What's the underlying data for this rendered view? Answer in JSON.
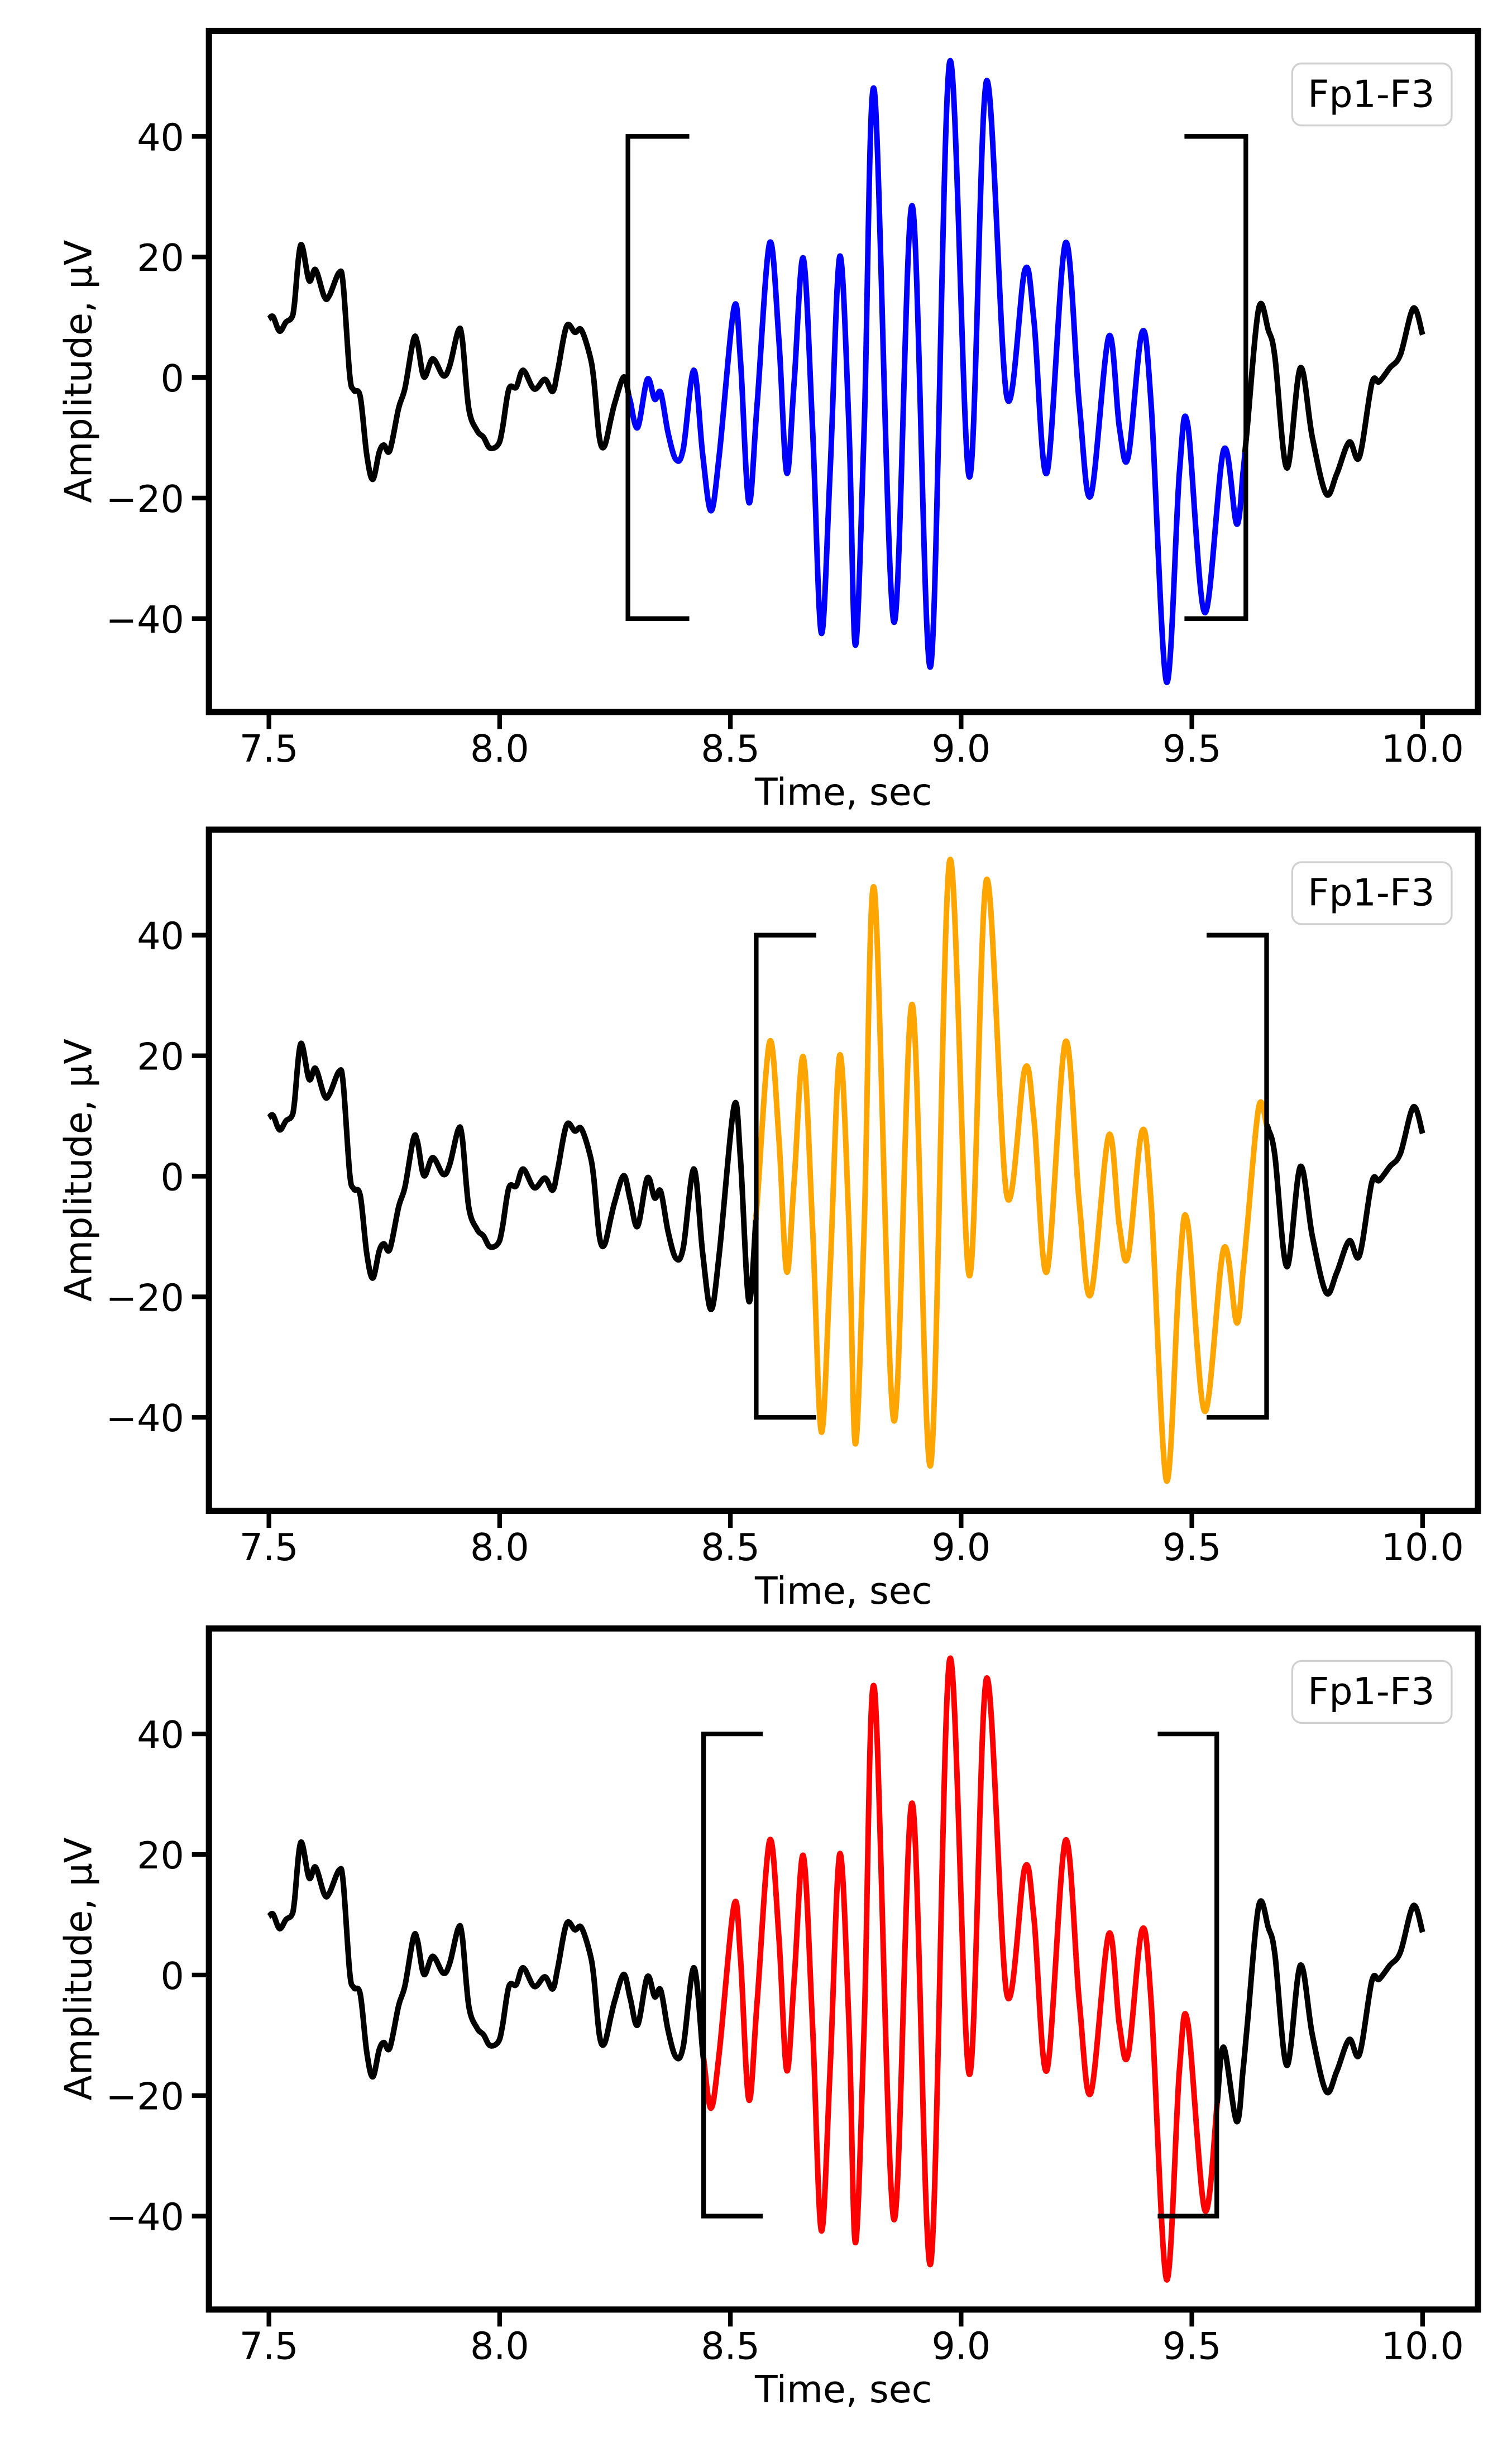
{
  "chart_data": {
    "type": "line",
    "xlabel": "Time, sec",
    "ylabel": "Amplitude, µV",
    "xlim": [
      7.37,
      10.12
    ],
    "ylim": [
      -55.5,
      57.5
    ],
    "xticks": [
      "7.5",
      "8.0",
      "8.5",
      "9.0",
      "9.5",
      "10.0"
    ],
    "xtick_values": [
      7.5,
      8.0,
      8.5,
      9.0,
      9.5,
      10.0
    ],
    "yticks": [
      "−40",
      "−20",
      "0",
      "20",
      "40"
    ],
    "ytick_values": [
      -40,
      -20,
      0,
      20,
      40
    ],
    "grid": false,
    "base_color": "#000000",
    "x": [
      7.5,
      7.509,
      7.523,
      7.537,
      7.549,
      7.555,
      7.569,
      7.587,
      7.601,
      7.62,
      7.631,
      7.652,
      7.661,
      7.675,
      7.684,
      7.698,
      7.712,
      7.725,
      7.739,
      7.749,
      7.762,
      7.781,
      7.795,
      7.813,
      7.822,
      7.836,
      7.855,
      7.878,
      7.892,
      7.91,
      7.919,
      7.933,
      7.951,
      7.965,
      7.979,
      7.997,
      8.006,
      8.02,
      8.036,
      8.051,
      8.075,
      8.098,
      8.115,
      8.126,
      8.145,
      8.163,
      8.177,
      8.195,
      8.204,
      8.216,
      8.227,
      8.241,
      8.25,
      8.269,
      8.283,
      8.299,
      8.32,
      8.336,
      8.349,
      8.365,
      8.382,
      8.398,
      8.421,
      8.44,
      8.458,
      8.476,
      8.508,
      8.522,
      8.54,
      8.558,
      8.585,
      8.605,
      8.622,
      8.638,
      8.658,
      8.678,
      8.697,
      8.716,
      8.737,
      8.757,
      8.771,
      8.79,
      8.812,
      8.854,
      8.894,
      8.934,
      8.975,
      9.018,
      9.055,
      9.099,
      9.138,
      9.158,
      9.186,
      9.226,
      9.256,
      9.281,
      9.32,
      9.343,
      9.362,
      9.392,
      9.412,
      9.445,
      9.473,
      9.491,
      9.528,
      9.569,
      9.597,
      9.611,
      9.62,
      9.645,
      9.666,
      9.68,
      9.706,
      9.735,
      9.761,
      9.791,
      9.814,
      9.841,
      9.863,
      9.89,
      9.906,
      9.929,
      9.952,
      9.98,
      10.0
    ],
    "y": [
      9.7,
      10.1,
      7.7,
      9.2,
      9.9,
      12.0,
      22.0,
      16.1,
      17.9,
      13.4,
      13.6,
      17.4,
      15.4,
      0.5,
      -2.1,
      -3.2,
      -12.8,
      -16.9,
      -12.4,
      -11.2,
      -12.1,
      -5.1,
      -1.7,
      6.2,
      5.7,
      0.1,
      3.1,
      0.3,
      2.0,
      7.7,
      6.4,
      -5.1,
      -8.8,
      -9.9,
      -11.7,
      -11.1,
      -8.5,
      -1.9,
      -1.6,
      1.2,
      -1.9,
      -0.3,
      -2.3,
      1.2,
      8.5,
      7.5,
      7.9,
      3.8,
      -0.3,
      -9.9,
      -11.4,
      -6.9,
      -4.1,
      0.1,
      -3.9,
      -8.3,
      -0.3,
      -3.6,
      -2.5,
      -9.2,
      -13.6,
      -11.8,
      1.2,
      -12.8,
      -22.1,
      -12.8,
      11.6,
      2.7,
      -20.7,
      -4.4,
      22.3,
      6.4,
      -15.8,
      -1.0,
      19.8,
      -8.3,
      -42.4,
      -15.8,
      20.1,
      -8.3,
      -44.4,
      -8.3,
      47.6,
      -40.5,
      28.5,
      -47.9,
      52.3,
      -16.5,
      49.2,
      -3.2,
      17.8,
      9.3,
      -15.8,
      22.3,
      -4.4,
      -19.6,
      6.8,
      -8.3,
      -13.2,
      7.5,
      -4.7,
      -50.5,
      -15.8,
      -7.8,
      -39.0,
      -12.0,
      -24.3,
      -15.7,
      -8.4,
      11.5,
      7.8,
      3.4,
      -15.0,
      1.6,
      -9.9,
      -19.3,
      -16.0,
      -10.7,
      -13.2,
      -1.0,
      -0.7,
      1.6,
      3.8,
      11.5,
      7.1
    ],
    "panels": [
      {
        "legend": "Fp1-F3",
        "highlight": {
          "start": 8.28,
          "end": 9.615,
          "color": "#0000ff"
        },
        "bracket": {
          "start": 8.278,
          "end": 9.617,
          "arm": 0.133,
          "ymin": -40,
          "ymax": 40
        }
      },
      {
        "legend": "Fp1-F3",
        "highlight": {
          "start": 8.556,
          "end": 9.662,
          "color": "#ffa500"
        },
        "bracket": {
          "start": 8.556,
          "end": 9.662,
          "arm": 0.13,
          "ymin": -40,
          "ymax": 40
        }
      },
      {
        "legend": "Fp1-F3",
        "highlight": {
          "start": 8.442,
          "end": 9.555,
          "color": "#ff0000"
        },
        "bracket": {
          "start": 8.442,
          "end": 9.554,
          "arm": 0.128,
          "ymin": -40,
          "ymax": 40
        }
      }
    ]
  }
}
